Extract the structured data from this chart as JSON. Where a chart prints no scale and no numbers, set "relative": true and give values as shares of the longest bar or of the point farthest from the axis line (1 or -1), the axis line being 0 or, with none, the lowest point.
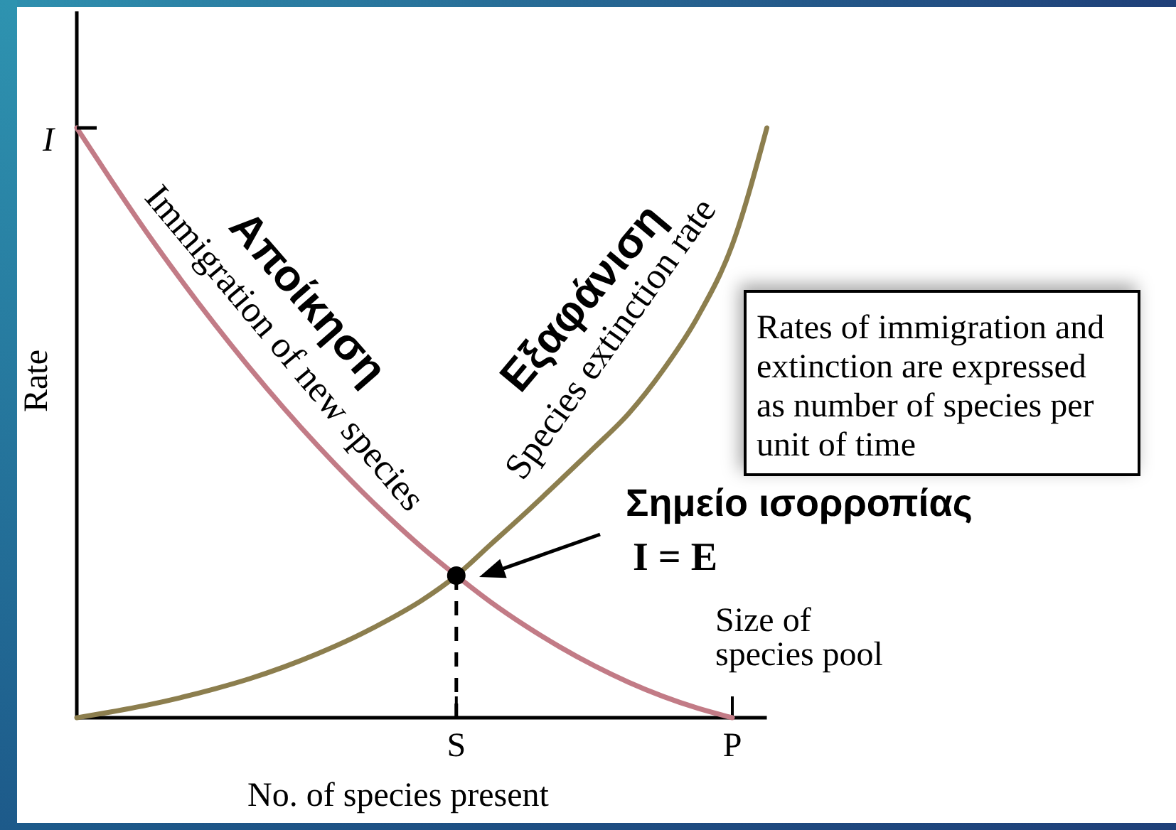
{
  "chart_data": {
    "type": "line",
    "xlabel": "No. of species present",
    "ylabel": "Rate",
    "relative": true,
    "categories": [
      null,
      null,
      null,
      null,
      null,
      null,
      null,
      null,
      null,
      null,
      null,
      "S",
      null,
      null,
      null,
      null,
      null,
      null,
      null,
      "P",
      null
    ],
    "series": [
      {
        "name": "Immigration of new species",
        "color": "#c27b86",
        "values": [
          1,
          0.911,
          0.825,
          0.744,
          0.667,
          0.594,
          0.525,
          0.46,
          0.399,
          0.342,
          0.289,
          0.241,
          0.196,
          0.156,
          0.12,
          0.088,
          0.06,
          0.036,
          0.016,
          0,
          null
        ]
      },
      {
        "name": "Species extinction rate",
        "color": "#8c7e4e",
        "values": [
          0,
          0.01,
          0.021,
          0.034,
          0.049,
          0.066,
          0.086,
          0.109,
          0.135,
          0.165,
          0.199,
          0.241,
          0.294,
          0.347,
          0.402,
          0.458,
          0.516,
          0.59,
          0.68,
          0.802,
          1
        ]
      },
      {
        "type": "lollipop",
        "color": "#000000",
        "marker": "circle",
        "line_style": "dashed",
        "values": [
          null,
          null,
          null,
          null,
          null,
          null,
          null,
          null,
          null,
          null,
          null,
          0.241,
          null,
          null,
          null,
          null,
          null,
          null,
          null,
          null,
          null
        ]
      }
    ],
    "annotations": [
      "Αποίκηση",
      "Εξαφάνιση",
      "Σημείο ισορροπίας",
      "I = E",
      "Size of species pool",
      "Rates of immigration and extinction are expressed as number of species per unit of time",
      "I"
    ]
  }
}
